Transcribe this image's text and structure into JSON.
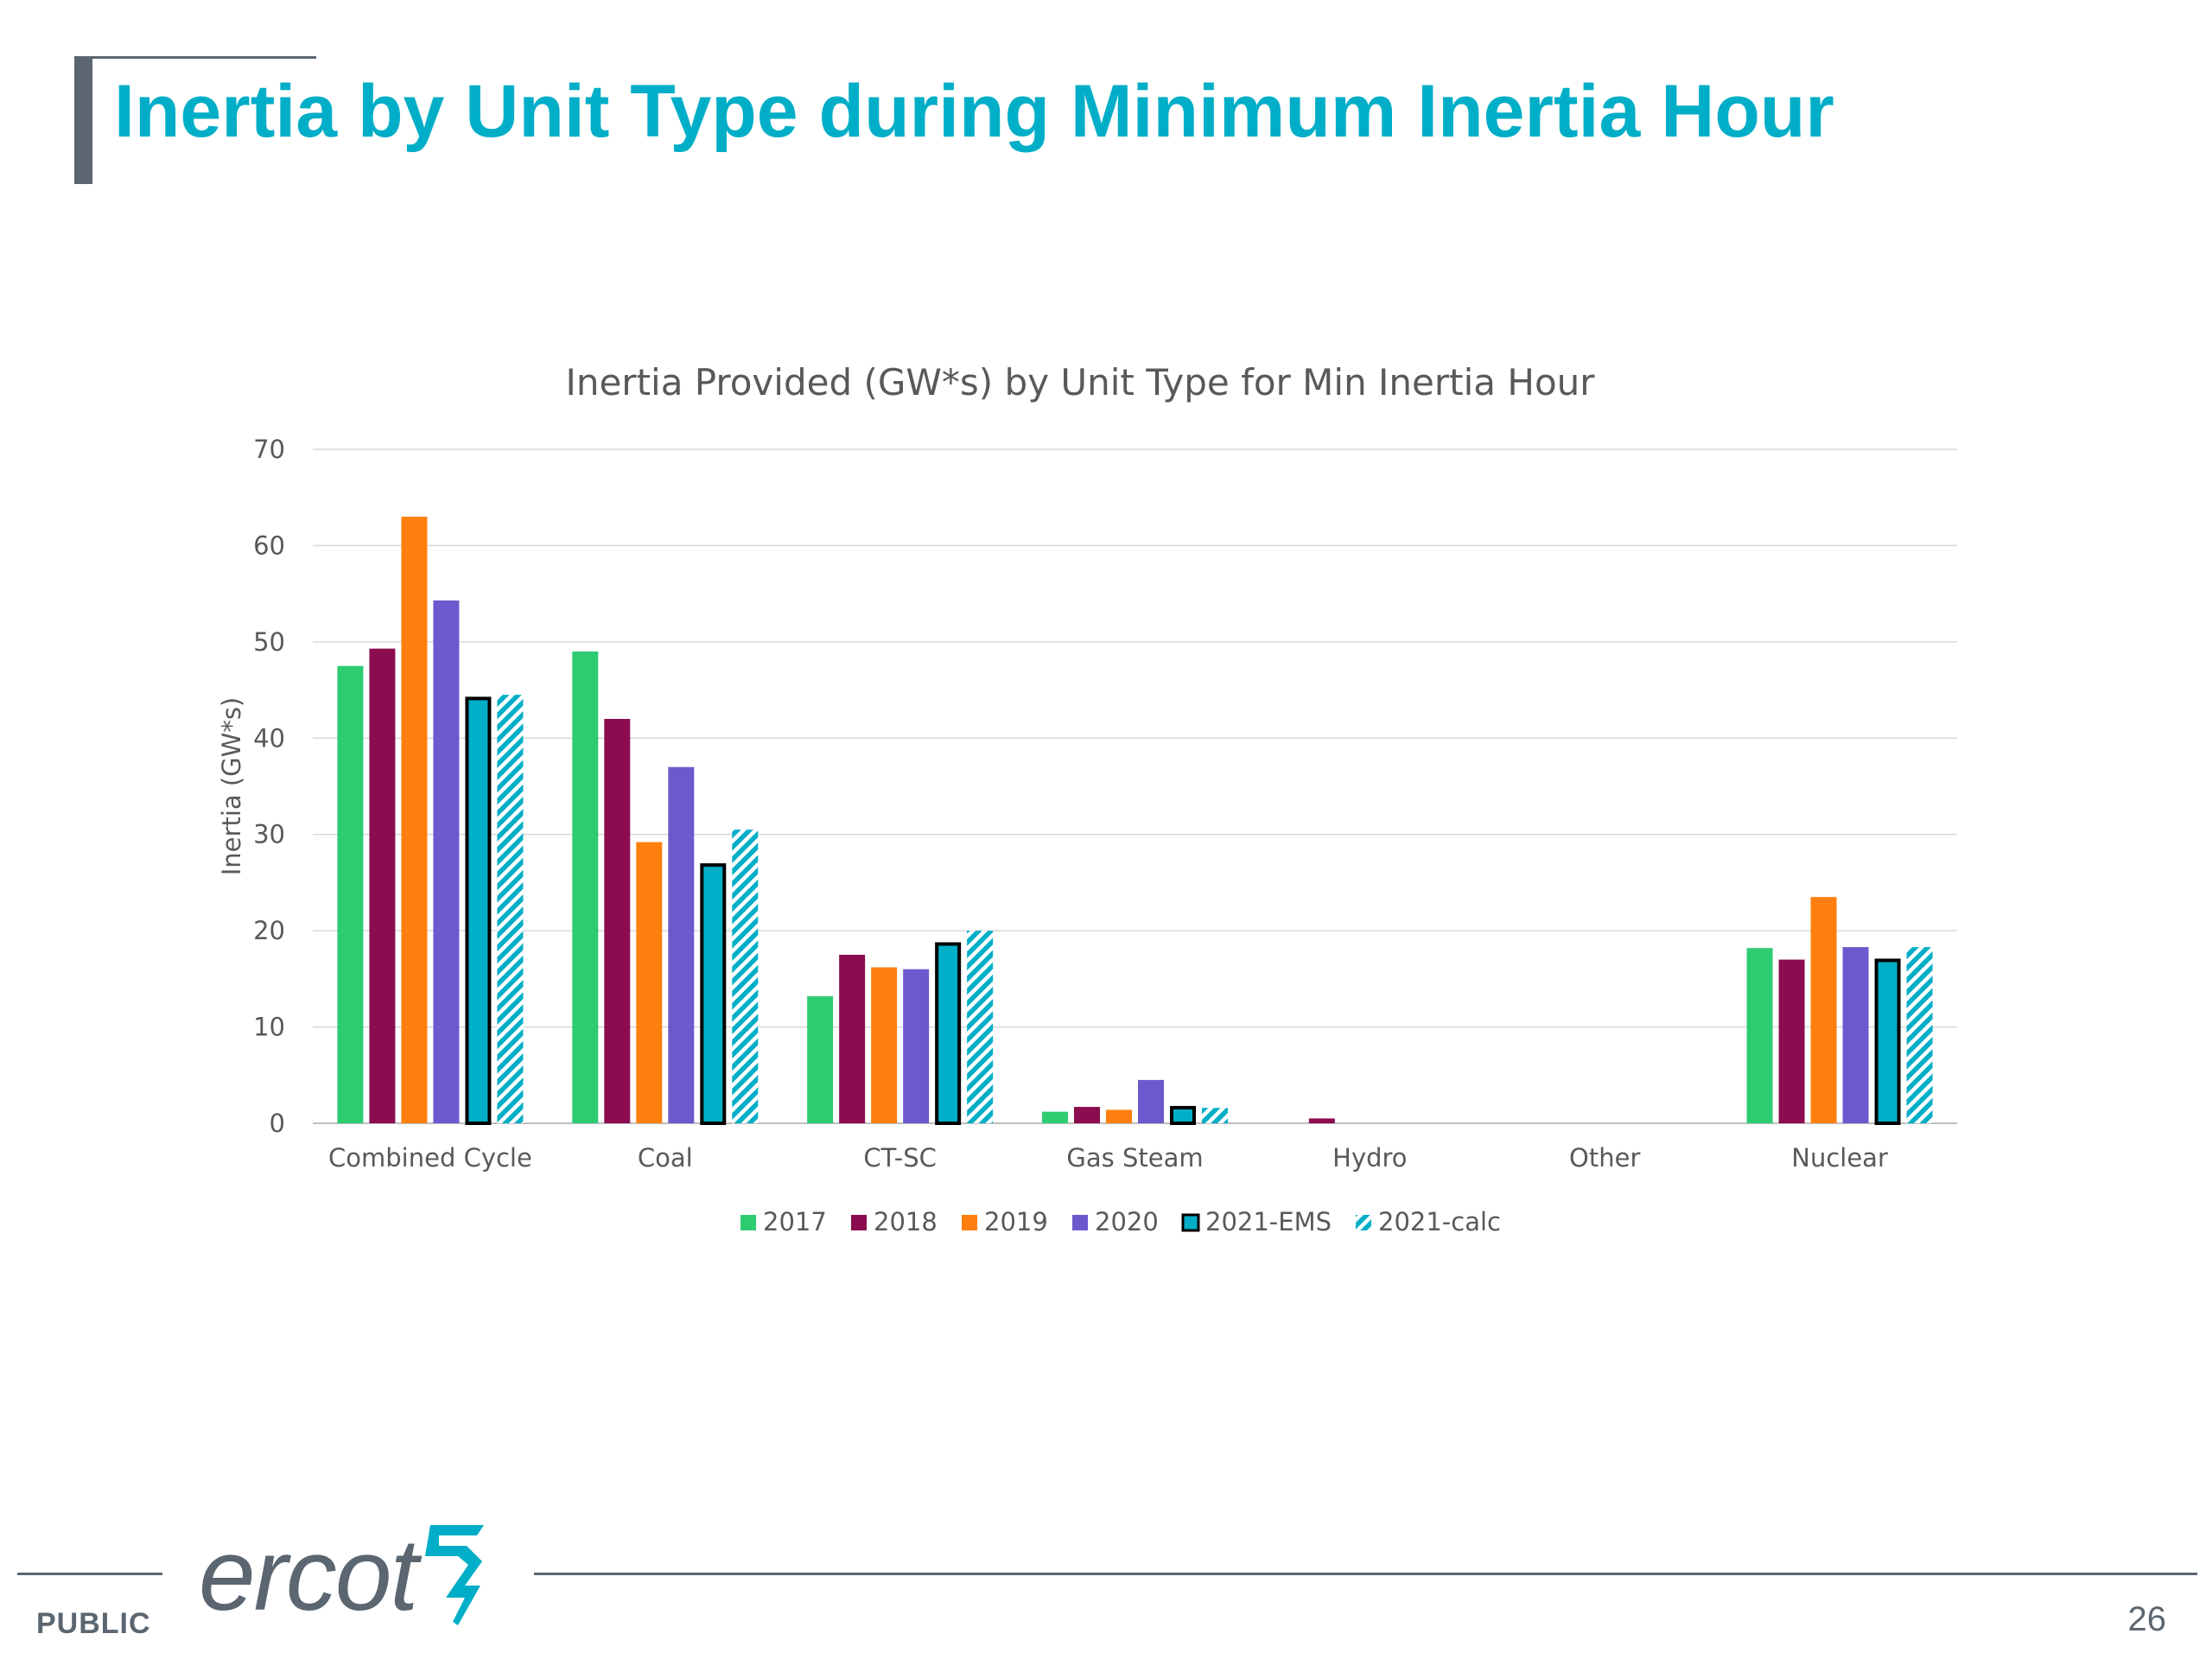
{
  "slide": {
    "title": "Inertia by Unit Type during Minimum Inertia Hour",
    "footer_label": "PUBLIC",
    "page_number": "26",
    "logo_text": "ercot"
  },
  "colors": {
    "title": "#00aec7",
    "gray": "#5b6670"
  },
  "chart_data": {
    "type": "bar",
    "title": "Inertia Provided (GW*s) by Unit Type for Min Inertia Hour",
    "xlabel": "",
    "ylabel": "Inertia (GW*s)",
    "ylim": [
      0,
      70
    ],
    "yticks": [
      0,
      10,
      20,
      30,
      40,
      50,
      60,
      70
    ],
    "grid": true,
    "legend_position": "bottom",
    "categories": [
      "Combined Cycle",
      "Coal",
      "CT-SC",
      "Gas Steam",
      "Hydro",
      "Other",
      "Nuclear"
    ],
    "series": [
      {
        "name": "2017",
        "color": "#2ecc71",
        "pattern": "solid",
        "values": [
          47.5,
          49,
          13.2,
          1.2,
          0,
          0,
          18.2
        ]
      },
      {
        "name": "2018",
        "color": "#8b0d4f",
        "pattern": "solid",
        "values": [
          49.3,
          42,
          17.5,
          1.7,
          0.5,
          0,
          17
        ]
      },
      {
        "name": "2019",
        "color": "#ff7f0e",
        "pattern": "solid",
        "values": [
          63,
          29.2,
          16.2,
          1.4,
          0,
          0,
          23.5
        ]
      },
      {
        "name": "2020",
        "color": "#6a5acd",
        "pattern": "solid",
        "values": [
          54.3,
          37,
          16,
          4.5,
          0,
          0,
          18.3
        ]
      },
      {
        "name": "2021-EMS",
        "color": "#00aec7",
        "pattern": "outlined",
        "values": [
          44.3,
          27,
          18.8,
          1.8,
          0,
          0,
          17.1
        ]
      },
      {
        "name": "2021-calc",
        "color": "#00aec7",
        "pattern": "hatched",
        "values": [
          44.5,
          30.5,
          20,
          1.6,
          0,
          0,
          18.3
        ]
      }
    ]
  }
}
